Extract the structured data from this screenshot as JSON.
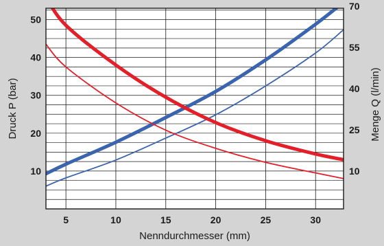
{
  "chart_data": {
    "type": "line",
    "xlabel": "Nenndurchmesser (mm)",
    "ylabel_left": "Druck P (bar)",
    "ylabel_right": "Menge Q (l/min)",
    "x_ticks": [
      5,
      10,
      15,
      20,
      25,
      30
    ],
    "y_left_ticks": [
      10,
      20,
      30,
      40,
      50
    ],
    "y_right_ticks": [
      {
        "label": "10",
        "value": 10
      },
      {
        "label": "25",
        "value": 25
      },
      {
        "label": "40",
        "value": 40
      },
      {
        "label": "55",
        "value": 55
      },
      {
        "label": "70",
        "value": 70
      }
    ],
    "xlim": [
      3,
      32.8
    ],
    "ylim_left": [
      0,
      53
    ],
    "grid": true,
    "colors": {
      "pressure": "#e3202a",
      "flow": "#3a64ad",
      "background": "#d4d4d4",
      "plot_area": "#ffffff"
    },
    "series": [
      {
        "axis": "left",
        "color": "#e3202a",
        "weight": "thick",
        "x": [
          3,
          5,
          10,
          15,
          20,
          25,
          30,
          32.8
        ],
        "y": [
          56,
          48.5,
          38,
          29.5,
          22.8,
          18,
          14.5,
          13
        ]
      },
      {
        "axis": "left",
        "color": "#e3202a",
        "weight": "thin",
        "x": [
          3,
          5,
          10,
          15,
          20,
          25,
          30,
          32.8
        ],
        "y": [
          43.5,
          37.5,
          28,
          20.8,
          16,
          12.3,
          9.5,
          8
        ]
      },
      {
        "axis": "right",
        "color": "#3a64ad",
        "weight": "thick",
        "x": [
          3,
          5,
          10,
          15,
          20,
          25,
          30,
          32.8
        ],
        "y": [
          9,
          12.5,
          20.5,
          29.5,
          39,
          50.5,
          63.5,
          71.5
        ]
      },
      {
        "axis": "right",
        "color": "#3a64ad",
        "weight": "thin",
        "x": [
          3,
          5,
          10,
          15,
          20,
          25,
          30,
          32.8
        ],
        "y": [
          4.5,
          7.5,
          14,
          22,
          30.5,
          41,
          53,
          61.5
        ]
      }
    ]
  }
}
